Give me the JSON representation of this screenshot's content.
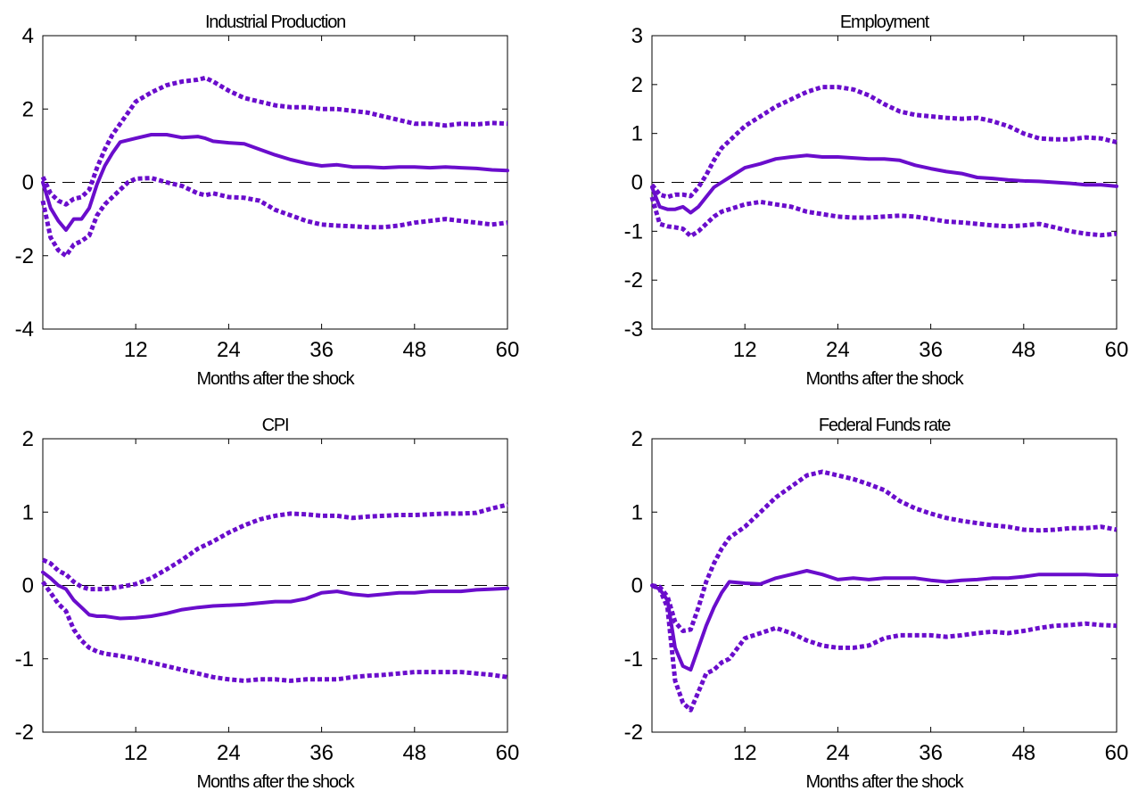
{
  "figure": {
    "background": "#ffffff",
    "series_color": "#6a0dcc",
    "zero_line_color": "#000000"
  },
  "chart_data": [
    {
      "type": "line",
      "title": "Industrial Production",
      "xlabel": "Months after the shock",
      "ylabel": "",
      "xlim": [
        0,
        60
      ],
      "ylim": [
        -4,
        4
      ],
      "xticks": [
        12,
        24,
        36,
        48,
        60
      ],
      "yticks": [
        -4,
        -2,
        0,
        2,
        4
      ],
      "grid": false,
      "legend": "none",
      "x": [
        0,
        1,
        2,
        3,
        4,
        5,
        6,
        7,
        8,
        9,
        10,
        11,
        12,
        14,
        16,
        18,
        20,
        21,
        22,
        24,
        26,
        28,
        30,
        32,
        34,
        36,
        38,
        40,
        42,
        44,
        46,
        48,
        50,
        52,
        54,
        56,
        58,
        60
      ],
      "series": [
        {
          "line": "solid",
          "values": [
            0.0,
            -0.7,
            -1.05,
            -1.3,
            -1.0,
            -1.0,
            -0.7,
            -0.05,
            0.45,
            0.8,
            1.1,
            1.15,
            1.2,
            1.3,
            1.3,
            1.22,
            1.25,
            1.2,
            1.12,
            1.08,
            1.05,
            0.9,
            0.75,
            0.62,
            0.52,
            0.45,
            0.48,
            0.42,
            0.42,
            0.4,
            0.42,
            0.42,
            0.4,
            0.42,
            0.4,
            0.38,
            0.34,
            0.32
          ]
        },
        {
          "line": "dotted",
          "values": [
            0.15,
            -0.3,
            -0.5,
            -0.6,
            -0.45,
            -0.4,
            -0.2,
            0.4,
            0.9,
            1.3,
            1.6,
            1.9,
            2.2,
            2.45,
            2.65,
            2.75,
            2.8,
            2.85,
            2.75,
            2.5,
            2.3,
            2.2,
            2.1,
            2.05,
            2.05,
            2.0,
            2.0,
            1.95,
            1.9,
            1.8,
            1.7,
            1.6,
            1.6,
            1.55,
            1.6,
            1.58,
            1.62,
            1.6
          ]
        },
        {
          "line": "dotted",
          "values": [
            -0.5,
            -1.5,
            -1.85,
            -2.0,
            -1.7,
            -1.6,
            -1.45,
            -0.9,
            -0.6,
            -0.4,
            -0.2,
            0.0,
            0.1,
            0.12,
            0.0,
            -0.1,
            -0.3,
            -0.35,
            -0.3,
            -0.4,
            -0.42,
            -0.5,
            -0.75,
            -0.9,
            -1.05,
            -1.15,
            -1.18,
            -1.2,
            -1.22,
            -1.22,
            -1.18,
            -1.1,
            -1.05,
            -1.0,
            -1.05,
            -1.1,
            -1.15,
            -1.1
          ]
        }
      ]
    },
    {
      "type": "line",
      "title": "Employment",
      "xlabel": "Months after the shock",
      "ylabel": "",
      "xlim": [
        0,
        60
      ],
      "ylim": [
        -3,
        3
      ],
      "xticks": [
        12,
        24,
        36,
        48,
        60
      ],
      "yticks": [
        -3,
        -2,
        -1,
        0,
        1,
        2,
        3
      ],
      "grid": false,
      "legend": "none",
      "x": [
        0,
        1,
        2,
        3,
        4,
        5,
        6,
        7,
        8,
        9,
        10,
        12,
        14,
        16,
        18,
        20,
        22,
        24,
        26,
        28,
        30,
        32,
        34,
        36,
        38,
        40,
        42,
        44,
        46,
        48,
        50,
        52,
        54,
        56,
        58,
        60
      ],
      "series": [
        {
          "line": "solid",
          "values": [
            -0.1,
            -0.5,
            -0.55,
            -0.55,
            -0.5,
            -0.62,
            -0.5,
            -0.3,
            -0.1,
            0.0,
            0.1,
            0.3,
            0.38,
            0.48,
            0.52,
            0.55,
            0.52,
            0.52,
            0.5,
            0.48,
            0.48,
            0.45,
            0.35,
            0.28,
            0.22,
            0.18,
            0.1,
            0.08,
            0.05,
            0.03,
            0.02,
            0.0,
            -0.02,
            -0.05,
            -0.05,
            -0.08
          ]
        },
        {
          "line": "dotted",
          "values": [
            -0.05,
            -0.25,
            -0.3,
            -0.25,
            -0.25,
            -0.28,
            -0.1,
            0.15,
            0.45,
            0.7,
            0.85,
            1.15,
            1.35,
            1.55,
            1.7,
            1.85,
            1.95,
            1.95,
            1.9,
            1.78,
            1.6,
            1.45,
            1.38,
            1.35,
            1.32,
            1.3,
            1.32,
            1.25,
            1.15,
            1.0,
            0.9,
            0.88,
            0.88,
            0.92,
            0.9,
            0.82
          ]
        },
        {
          "line": "dotted",
          "values": [
            -0.3,
            -0.85,
            -0.9,
            -0.92,
            -0.95,
            -1.1,
            -1.0,
            -0.85,
            -0.7,
            -0.6,
            -0.55,
            -0.45,
            -0.4,
            -0.45,
            -0.5,
            -0.6,
            -0.65,
            -0.7,
            -0.72,
            -0.72,
            -0.7,
            -0.68,
            -0.7,
            -0.75,
            -0.8,
            -0.82,
            -0.85,
            -0.88,
            -0.9,
            -0.88,
            -0.85,
            -0.92,
            -1.0,
            -1.05,
            -1.08,
            -1.05
          ]
        }
      ]
    },
    {
      "type": "line",
      "title": "CPI",
      "xlabel": "Months after the shock",
      "ylabel": "",
      "xlim": [
        0,
        60
      ],
      "ylim": [
        -2,
        2
      ],
      "xticks": [
        12,
        24,
        36,
        48,
        60
      ],
      "yticks": [
        -2,
        -1,
        0,
        1,
        2
      ],
      "grid": false,
      "legend": "none",
      "x": [
        0,
        1,
        2,
        3,
        4,
        5,
        6,
        7,
        8,
        10,
        12,
        14,
        16,
        18,
        20,
        22,
        24,
        26,
        28,
        30,
        32,
        34,
        36,
        38,
        40,
        42,
        44,
        46,
        48,
        50,
        52,
        54,
        56,
        58,
        60
      ],
      "series": [
        {
          "line": "solid",
          "values": [
            0.18,
            0.1,
            0.0,
            -0.05,
            -0.2,
            -0.3,
            -0.4,
            -0.42,
            -0.42,
            -0.45,
            -0.44,
            -0.42,
            -0.38,
            -0.33,
            -0.3,
            -0.28,
            -0.27,
            -0.26,
            -0.24,
            -0.22,
            -0.22,
            -0.18,
            -0.1,
            -0.08,
            -0.12,
            -0.14,
            -0.12,
            -0.1,
            -0.1,
            -0.08,
            -0.08,
            -0.08,
            -0.06,
            -0.05,
            -0.04
          ]
        },
        {
          "line": "dotted",
          "values": [
            0.35,
            0.3,
            0.2,
            0.15,
            0.05,
            -0.02,
            -0.05,
            -0.05,
            -0.05,
            -0.02,
            0.02,
            0.1,
            0.22,
            0.35,
            0.5,
            0.6,
            0.72,
            0.82,
            0.9,
            0.95,
            0.98,
            0.97,
            0.95,
            0.95,
            0.92,
            0.94,
            0.95,
            0.96,
            0.96,
            0.97,
            0.98,
            0.98,
            0.99,
            1.05,
            1.1
          ]
        },
        {
          "line": "dotted",
          "values": [
            0.05,
            -0.1,
            -0.25,
            -0.35,
            -0.6,
            -0.75,
            -0.85,
            -0.9,
            -0.93,
            -0.96,
            -1.0,
            -1.05,
            -1.1,
            -1.15,
            -1.2,
            -1.25,
            -1.28,
            -1.3,
            -1.28,
            -1.28,
            -1.3,
            -1.28,
            -1.28,
            -1.28,
            -1.25,
            -1.23,
            -1.22,
            -1.2,
            -1.18,
            -1.18,
            -1.18,
            -1.18,
            -1.2,
            -1.22,
            -1.25
          ]
        }
      ]
    },
    {
      "type": "line",
      "title": "Federal Funds rate",
      "xlabel": "Months after the shock",
      "ylabel": "",
      "xlim": [
        0,
        60
      ],
      "ylim": [
        -2,
        2
      ],
      "xticks": [
        12,
        24,
        36,
        48,
        60
      ],
      "yticks": [
        -2,
        -1,
        0,
        1,
        2
      ],
      "grid": false,
      "legend": "none",
      "x": [
        0,
        1,
        2,
        3,
        4,
        5,
        6,
        7,
        8,
        9,
        10,
        12,
        14,
        16,
        18,
        20,
        22,
        24,
        26,
        28,
        30,
        32,
        34,
        36,
        38,
        40,
        42,
        44,
        46,
        48,
        50,
        52,
        54,
        56,
        58,
        60
      ],
      "series": [
        {
          "line": "solid",
          "values": [
            0.0,
            -0.05,
            -0.2,
            -0.85,
            -1.1,
            -1.15,
            -0.85,
            -0.55,
            -0.3,
            -0.1,
            0.05,
            0.03,
            0.02,
            0.1,
            0.15,
            0.2,
            0.15,
            0.08,
            0.1,
            0.08,
            0.1,
            0.1,
            0.1,
            0.07,
            0.05,
            0.07,
            0.08,
            0.1,
            0.1,
            0.12,
            0.15,
            0.15,
            0.15,
            0.15,
            0.14,
            0.14
          ]
        },
        {
          "line": "dotted",
          "values": [
            0.0,
            -0.02,
            -0.15,
            -0.5,
            -0.62,
            -0.6,
            -0.3,
            0.05,
            0.3,
            0.5,
            0.65,
            0.8,
            1.0,
            1.2,
            1.35,
            1.5,
            1.55,
            1.5,
            1.45,
            1.38,
            1.3,
            1.15,
            1.05,
            0.98,
            0.92,
            0.88,
            0.85,
            0.82,
            0.8,
            0.76,
            0.75,
            0.76,
            0.78,
            0.78,
            0.8,
            0.76
          ]
        },
        {
          "line": "dotted",
          "values": [
            0.0,
            -0.05,
            -0.3,
            -1.3,
            -1.6,
            -1.7,
            -1.45,
            -1.2,
            -1.15,
            -1.05,
            -1.0,
            -0.72,
            -0.65,
            -0.58,
            -0.65,
            -0.75,
            -0.82,
            -0.85,
            -0.85,
            -0.82,
            -0.72,
            -0.68,
            -0.68,
            -0.68,
            -0.7,
            -0.68,
            -0.65,
            -0.63,
            -0.65,
            -0.62,
            -0.58,
            -0.55,
            -0.54,
            -0.52,
            -0.54,
            -0.55
          ]
        }
      ]
    }
  ]
}
